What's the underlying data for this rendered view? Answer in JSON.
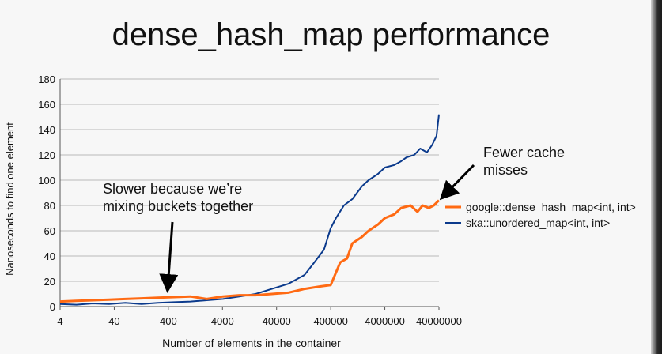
{
  "slide": {
    "title": "dense_hash_map performance"
  },
  "chart_data": {
    "type": "line",
    "title": "",
    "xlabel": "Number of elements in the container",
    "ylabel": "Nanoseconds to find one element",
    "x_scale": "log",
    "xlim": [
      4,
      40000000
    ],
    "ylim": [
      0,
      180
    ],
    "y_ticks": [
      0,
      20,
      40,
      60,
      80,
      100,
      120,
      140,
      160,
      180
    ],
    "x_tick_labels": [
      "4",
      "40",
      "400",
      "4000",
      "40000",
      "400000",
      "4000000",
      "40000000"
    ],
    "grid": "horizontal",
    "legend": "right",
    "series": [
      {
        "name": "google::dense_hash_map<int, int>",
        "color": "#ff6a13",
        "x": [
          4,
          8,
          16,
          32,
          64,
          128,
          256,
          512,
          1024,
          2048,
          4096,
          8192,
          16384,
          32768,
          65536,
          131072,
          262144,
          400000,
          600000,
          800000,
          1000000,
          1500000,
          2000000,
          3000000,
          4000000,
          6000000,
          8000000,
          12000000,
          16000000,
          20000000,
          26000000,
          32000000,
          40000000
        ],
        "y": [
          4,
          4.5,
          5,
          5.5,
          6,
          6.5,
          7,
          7.5,
          8,
          6,
          8,
          9,
          9,
          10,
          11,
          14,
          16,
          17,
          35,
          38,
          50,
          55,
          60,
          65,
          70,
          73,
          78,
          80,
          75,
          80,
          78,
          80,
          84
        ]
      },
      {
        "name": "ska::unordered_map<int, int>",
        "color": "#0b3a8c",
        "x": [
          4,
          8,
          16,
          32,
          64,
          128,
          256,
          512,
          1024,
          2048,
          4096,
          8192,
          16384,
          32768,
          65536,
          131072,
          200000,
          300000,
          400000,
          500000,
          700000,
          1000000,
          1500000,
          2000000,
          3000000,
          4000000,
          6000000,
          8000000,
          10000000,
          14000000,
          18000000,
          24000000,
          30000000,
          36000000,
          40000000
        ],
        "y": [
          2,
          1.5,
          2.5,
          2,
          3,
          2,
          3,
          3.5,
          4,
          5,
          6,
          8,
          10,
          14,
          18,
          25,
          35,
          45,
          62,
          70,
          80,
          85,
          95,
          100,
          105,
          110,
          112,
          115,
          118,
          120,
          125,
          122,
          128,
          135,
          152
        ]
      }
    ],
    "annotations": [
      {
        "text": "Slower because we’re",
        "target_x": 400,
        "target_y": 12
      },
      {
        "text": "mixing buckets together"
      },
      {
        "text": "Fewer cache",
        "target_x": 40000000,
        "target_y": 84
      },
      {
        "text": "misses"
      }
    ]
  }
}
